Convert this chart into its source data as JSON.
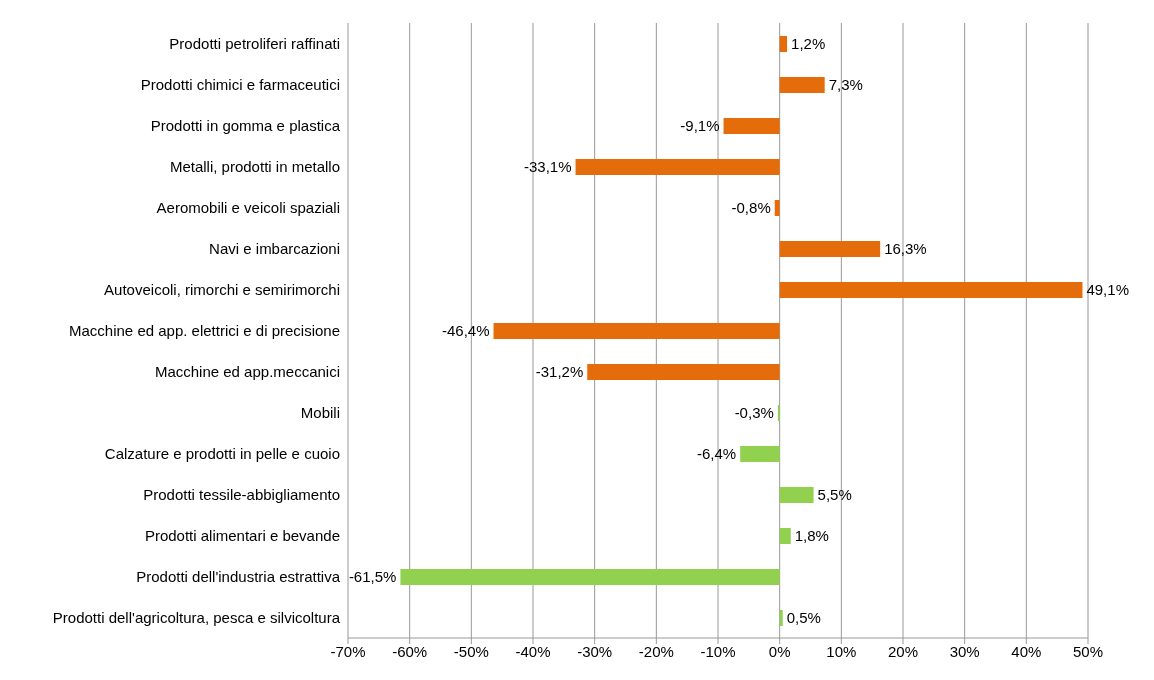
{
  "chart_data": {
    "type": "bar",
    "orientation": "horizontal",
    "categories": [
      "Prodotti petroliferi raffinati",
      "Prodotti chimici e farmaceutici",
      "Prodotti in gomma e plastica",
      "Metalli,  prodotti in metallo",
      "Aeromobili e veicoli spaziali",
      "Navi e imbarcazioni",
      "Autoveicoli, rimorchi e semirimorchi",
      "Macchine ed app. elettrici e di precisione",
      "Macchine ed app.meccanici",
      "Mobili",
      "Calzature e prodotti in pelle e cuoio",
      "Prodotti tessile-abbigliamento",
      "Prodotti alimentari e bevande",
      "Prodotti dell'industria estrattiva",
      "Prodotti dell'agricoltura, pesca e silvicoltura"
    ],
    "values": [
      1.2,
      7.3,
      -9.1,
      -33.1,
      -0.8,
      16.3,
      49.1,
      -46.4,
      -31.2,
      -0.3,
      -6.4,
      5.5,
      1.8,
      -61.5,
      0.5
    ],
    "value_labels": [
      "1,2%",
      "7,3%",
      "-9,1%",
      "-33,1%",
      "-0,8%",
      "16,3%",
      "49,1%",
      "-46,4%",
      "-31,2%",
      "-0,3%",
      "-6,4%",
      "5,5%",
      "1,8%",
      "-61,5%",
      "0,5%"
    ],
    "colors": [
      "#e46c0a",
      "#e46c0a",
      "#e46c0a",
      "#e46c0a",
      "#e46c0a",
      "#e46c0a",
      "#e46c0a",
      "#e46c0a",
      "#e46c0a",
      "#92d050",
      "#92d050",
      "#92d050",
      "#92d050",
      "#92d050",
      "#92d050"
    ],
    "xlim": [
      -70,
      50
    ],
    "xticks": [
      {
        "value": -70,
        "label": "-70%"
      },
      {
        "value": -60,
        "label": "-60%"
      },
      {
        "value": -50,
        "label": "-50%"
      },
      {
        "value": -40,
        "label": "-40%"
      },
      {
        "value": -30,
        "label": "-30%"
      },
      {
        "value": -20,
        "label": "-20%"
      },
      {
        "value": -10,
        "label": "-10%"
      },
      {
        "value": 0,
        "label": "0%"
      },
      {
        "value": 10,
        "label": "10%"
      },
      {
        "value": 20,
        "label": "20%"
      },
      {
        "value": 30,
        "label": "30%"
      },
      {
        "value": 40,
        "label": "40%"
      },
      {
        "value": 50,
        "label": "50%"
      }
    ],
    "grid": "x",
    "legend": false
  }
}
